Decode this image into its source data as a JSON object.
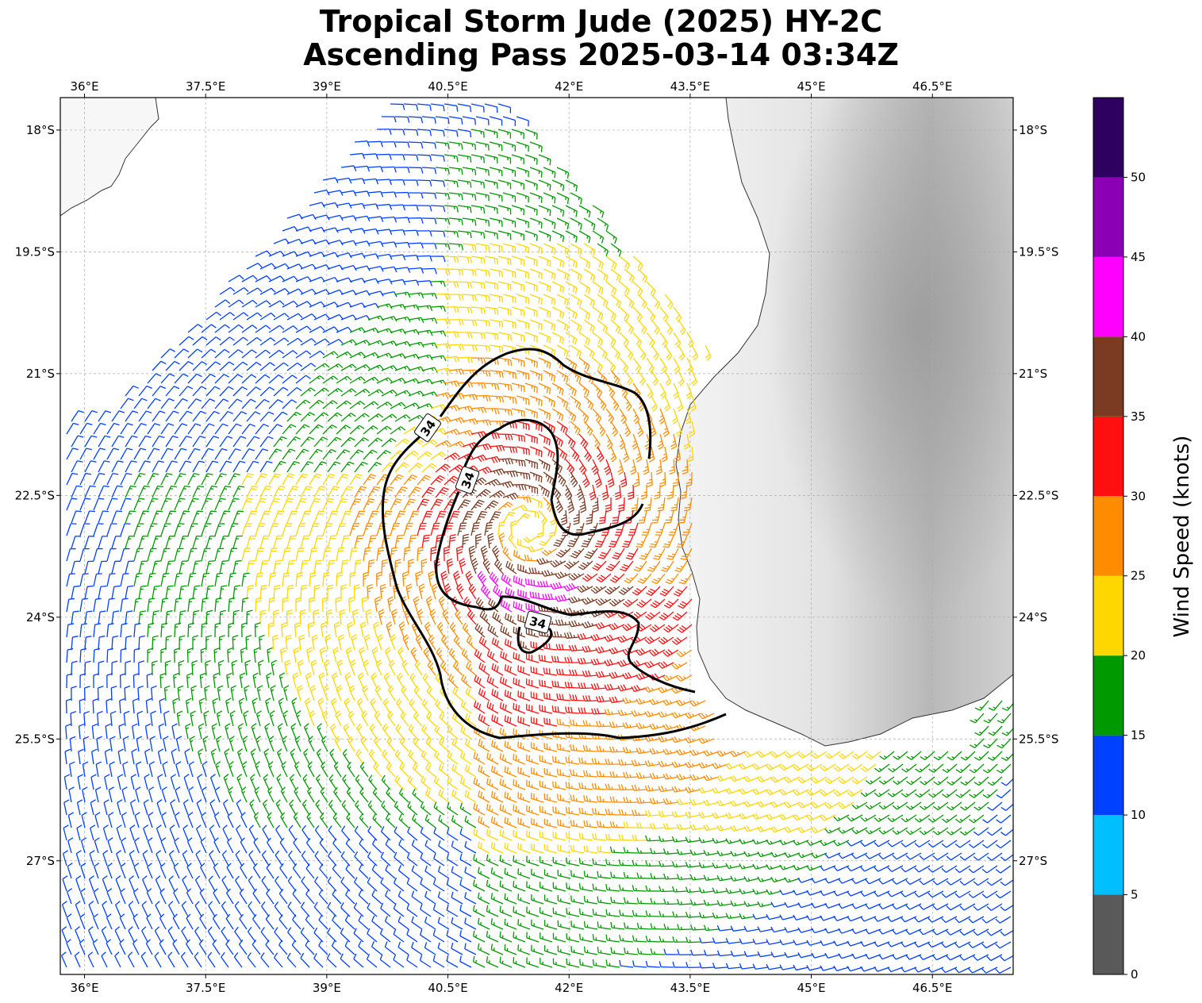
{
  "title": {
    "line1": "Tropical Storm Jude (2025) HY-2C",
    "line2": "Ascending Pass 2025-03-14 03:34Z"
  },
  "map": {
    "lon_range": [
      35.7,
      47.5
    ],
    "lat_range": [
      -28.4,
      -17.6
    ],
    "lon_ticks": [
      "36°E",
      "37.5°E",
      "39°E",
      "40.5°E",
      "42°E",
      "43.5°E",
      "45°E",
      "46.5°E"
    ],
    "lat_ticks": [
      "18°S",
      "19.5°S",
      "21°S",
      "22.5°S",
      "24°S",
      "25.5°S",
      "27°S"
    ],
    "gridlines": true,
    "land": "grayscale terrain (Madagascar, Mozambique coast)",
    "storm_center": {
      "lon": 41.5,
      "lat": -22.9
    },
    "contour_labels": [
      "34",
      "34",
      "34"
    ]
  },
  "colorbar": {
    "label": "Wind Speed (knots)",
    "tick_labels": [
      "0",
      "5",
      "10",
      "15",
      "20",
      "25",
      "30",
      "35",
      "40",
      "45",
      "50"
    ],
    "colors": [
      "#595959",
      "#00bfff",
      "#0040ff",
      "#009900",
      "#ffd700",
      "#ff8c00",
      "#ff1010",
      "#7b3a22",
      "#ff00ff",
      "#8b00b5",
      "#2e0060"
    ]
  }
}
